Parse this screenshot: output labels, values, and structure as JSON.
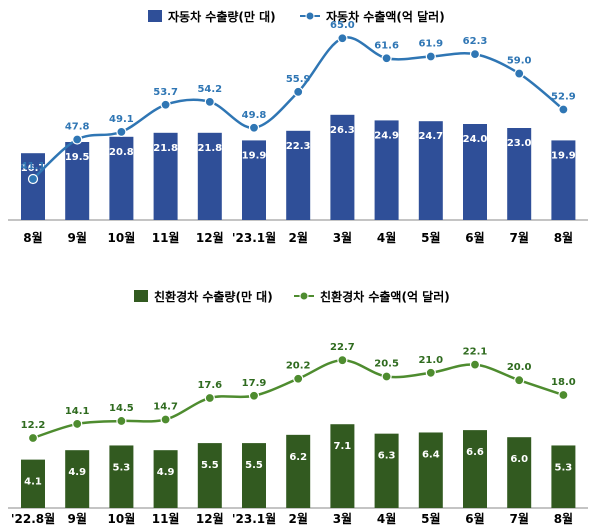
{
  "chart_data": [
    {
      "type": "bar",
      "categories": [
        "8월",
        "9월",
        "10월",
        "11월",
        "12월",
        "'23.1월",
        "2월",
        "3월",
        "4월",
        "5월",
        "6월",
        "7월",
        "8월"
      ],
      "series": [
        {
          "name": "자동차 수출량(만 대)",
          "kind": "bar",
          "values": [
            16.7,
            19.5,
            20.8,
            21.8,
            21.8,
            19.9,
            22.3,
            26.3,
            24.9,
            24.7,
            24.0,
            23.0,
            19.9
          ]
        },
        {
          "name": "자동차 수출액(억 달러)",
          "kind": "line",
          "values": [
            41.1,
            47.8,
            49.1,
            53.7,
            54.2,
            49.8,
            55.9,
            65.0,
            61.6,
            61.9,
            62.3,
            59.0,
            52.9
          ]
        }
      ],
      "colors": {
        "bar": "#2f4f98",
        "bar_label": "#ffffff",
        "line": "#2f76b4",
        "line_label": "#2f76b4"
      },
      "legend": "top-center",
      "grid": false
    },
    {
      "type": "bar",
      "categories": [
        "'22.8월",
        "9월",
        "10월",
        "11월",
        "12월",
        "'23.1월",
        "2월",
        "3월",
        "4월",
        "5월",
        "6월",
        "7월",
        "8월"
      ],
      "series": [
        {
          "name": "친환경차 수출량(만 대)",
          "kind": "bar",
          "values": [
            4.1,
            4.9,
            5.3,
            4.9,
            5.5,
            5.5,
            6.2,
            7.1,
            6.3,
            6.4,
            6.6,
            6.0,
            5.3
          ]
        },
        {
          "name": "친환경차 수출액(억 달러)",
          "kind": "line",
          "values": [
            12.2,
            14.1,
            14.5,
            14.7,
            17.6,
            17.9,
            20.2,
            22.7,
            20.5,
            21.0,
            22.1,
            20.0,
            18.0
          ]
        }
      ],
      "colors": {
        "bar": "#325a20",
        "bar_label": "#ffffff",
        "line": "#4e8c2f",
        "line_label": "#2f6b1f"
      },
      "legend": "top-center",
      "grid": false
    }
  ]
}
